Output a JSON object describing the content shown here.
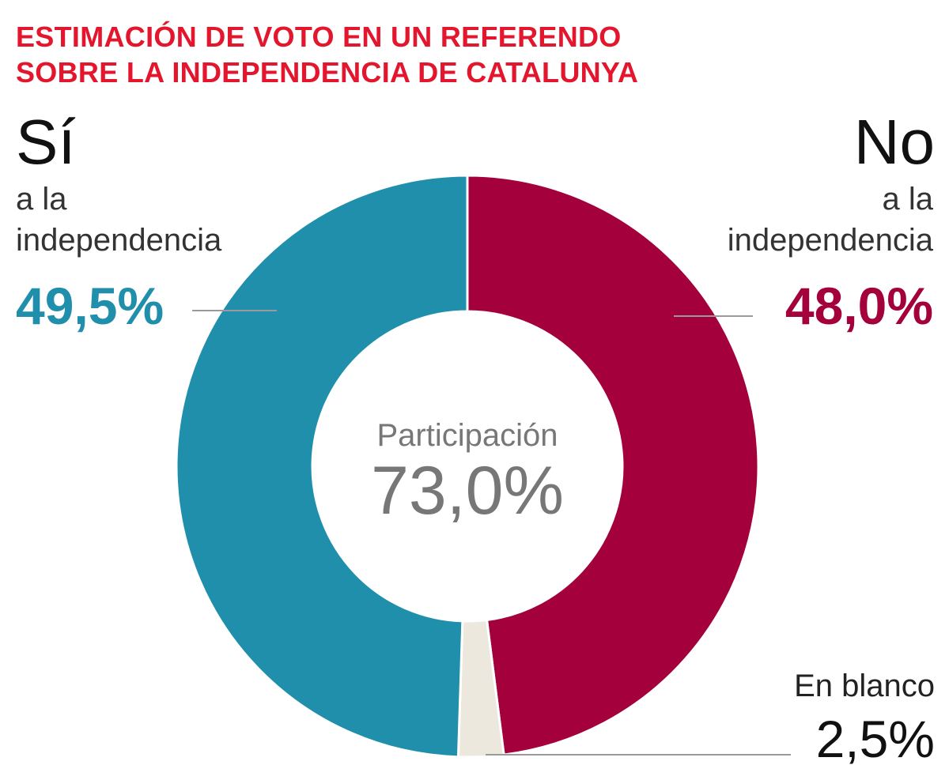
{
  "title_lines": [
    "ESTIMACIÓN DE VOTO EN UN REFERENDO",
    "SOBRE LA INDEPENDENCIA DE CATALUNYA"
  ],
  "colors": {
    "title": "#e3162d",
    "si": "#1f8fac",
    "no": "#a3003c",
    "blanco": "#ece8de",
    "center_text": "#777777"
  },
  "chart_data": {
    "type": "pie",
    "title": "ESTIMACIÓN DE VOTO EN UN REFERENDO SOBRE LA INDEPENDENCIA DE CATALUNYA",
    "slices": [
      {
        "key": "no",
        "label": "No",
        "sublabel_1": "a la",
        "sublabel_2": "independencia",
        "value": 48.0,
        "display": "48,0%"
      },
      {
        "key": "blanco",
        "label": "En blanco",
        "value": 2.5,
        "display": "2,5%"
      },
      {
        "key": "si",
        "label": "Sí",
        "sublabel_1": "a la",
        "sublabel_2": "independencia",
        "value": 49.5,
        "display": "49,5%"
      }
    ],
    "center": {
      "label": "Participación",
      "value": 73.0,
      "display": "73,0%"
    }
  }
}
